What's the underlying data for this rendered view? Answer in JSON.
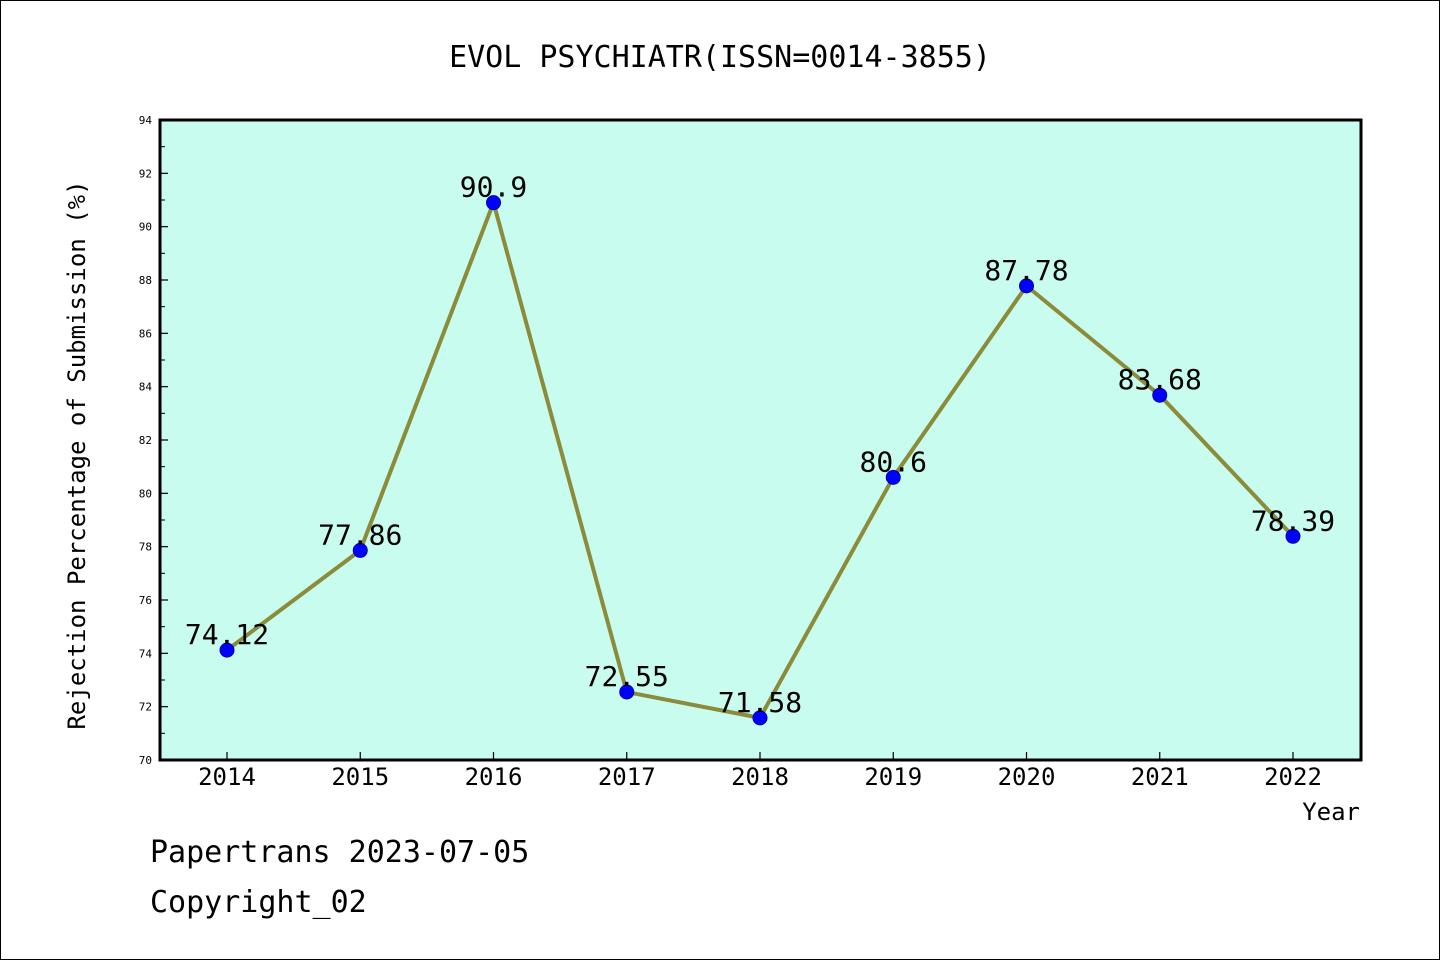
{
  "chart_data": {
    "type": "line",
    "title": "EVOL PSYCHIATR(ISSN=0014-3855)",
    "xlabel": "Year",
    "ylabel": "Rejection Percentage of Submission (%)",
    "categories": [
      "2014",
      "2015",
      "2016",
      "2017",
      "2018",
      "2019",
      "2020",
      "2021",
      "2022"
    ],
    "series": [
      {
        "values": [
          74.12,
          77.86,
          90.9,
          72.55,
          71.58,
          80.6,
          87.78,
          83.68,
          78.39
        ],
        "labels": [
          "74.12",
          "77.86",
          "90.9",
          "72.55",
          "71.58",
          "80.6",
          "87.78",
          "83.68",
          "78.39"
        ]
      }
    ],
    "ylim": [
      70,
      94
    ],
    "yticks": [
      "70",
      "72",
      "74",
      "76",
      "78",
      "80",
      "82",
      "84",
      "86",
      "88",
      "90",
      "92",
      "94"
    ],
    "grid": false,
    "legend": "none",
    "colors": {
      "plot_background": "#c8fcee",
      "line": "#8b8b3a",
      "marker": "#0000ff"
    }
  },
  "footer": {
    "line1": "Papertrans 2023-07-05",
    "line2": "Copyright_02"
  }
}
